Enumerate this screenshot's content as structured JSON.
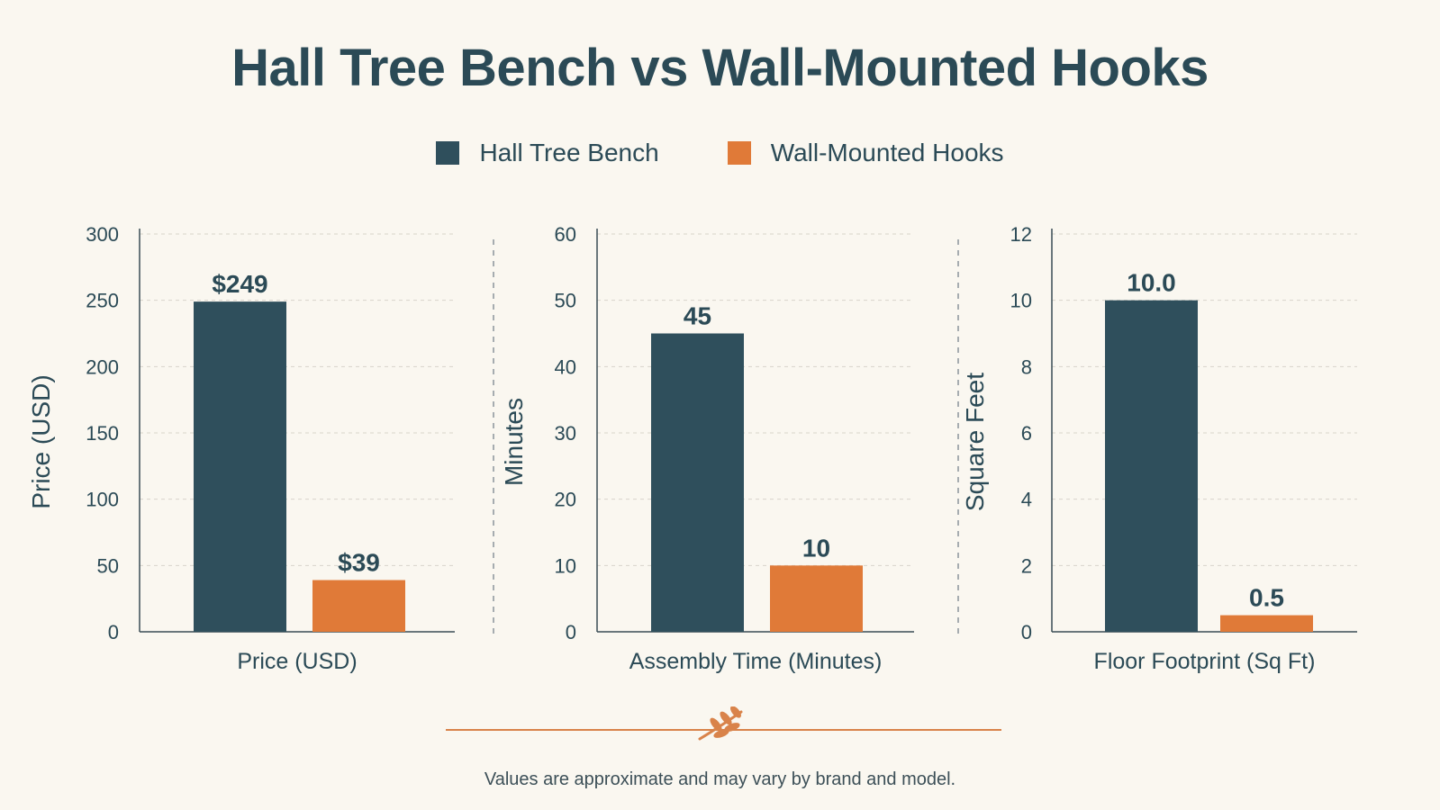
{
  "title": "Hall Tree Bench vs Wall-Mounted Hooks",
  "footnote": "Values are approximate and may vary by brand and model.",
  "colors": {
    "series_a": "#2f4f5c",
    "series_b": "#e07a38",
    "text": "#2b4a56",
    "accent": "#d9834a"
  },
  "legend": [
    {
      "label": "Hall Tree Bench",
      "color": "#2f4f5c"
    },
    {
      "label": "Wall-Mounted Hooks",
      "color": "#e07a38"
    }
  ],
  "ornament_icon": "wheat-sprig-icon",
  "chart_data": [
    {
      "type": "bar",
      "ylabel": "Price (USD)",
      "xlabel": "Price (USD)",
      "ylim": [
        0,
        300
      ],
      "yticks": [
        "0",
        "50",
        "100",
        "150",
        "200",
        "250",
        "300"
      ],
      "series": [
        {
          "name": "Hall Tree Bench",
          "values": [
            249
          ],
          "labels": [
            "$249"
          ]
        },
        {
          "name": "Wall-Mounted Hooks",
          "values": [
            39
          ],
          "labels": [
            "$39"
          ]
        }
      ],
      "grid": true
    },
    {
      "type": "bar",
      "ylabel": "Minutes",
      "xlabel": "Assembly Time (Minutes)",
      "ylim": [
        0,
        60
      ],
      "yticks": [
        "0",
        "10",
        "20",
        "30",
        "40",
        "50",
        "60"
      ],
      "series": [
        {
          "name": "Hall Tree Bench",
          "values": [
            45
          ],
          "labels": [
            "45"
          ]
        },
        {
          "name": "Wall-Mounted Hooks",
          "values": [
            10
          ],
          "labels": [
            "10"
          ]
        }
      ],
      "grid": true
    },
    {
      "type": "bar",
      "ylabel": "Square Feet",
      "xlabel": "Floor Footprint (Sq Ft)",
      "ylim": [
        0,
        12
      ],
      "yticks": [
        "0",
        "2",
        "4",
        "6",
        "8",
        "10",
        "12"
      ],
      "series": [
        {
          "name": "Hall Tree Bench",
          "values": [
            10.0
          ],
          "labels": [
            "10.0"
          ]
        },
        {
          "name": "Wall-Mounted Hooks",
          "values": [
            0.5
          ],
          "labels": [
            "0.5"
          ]
        }
      ],
      "grid": true
    }
  ]
}
